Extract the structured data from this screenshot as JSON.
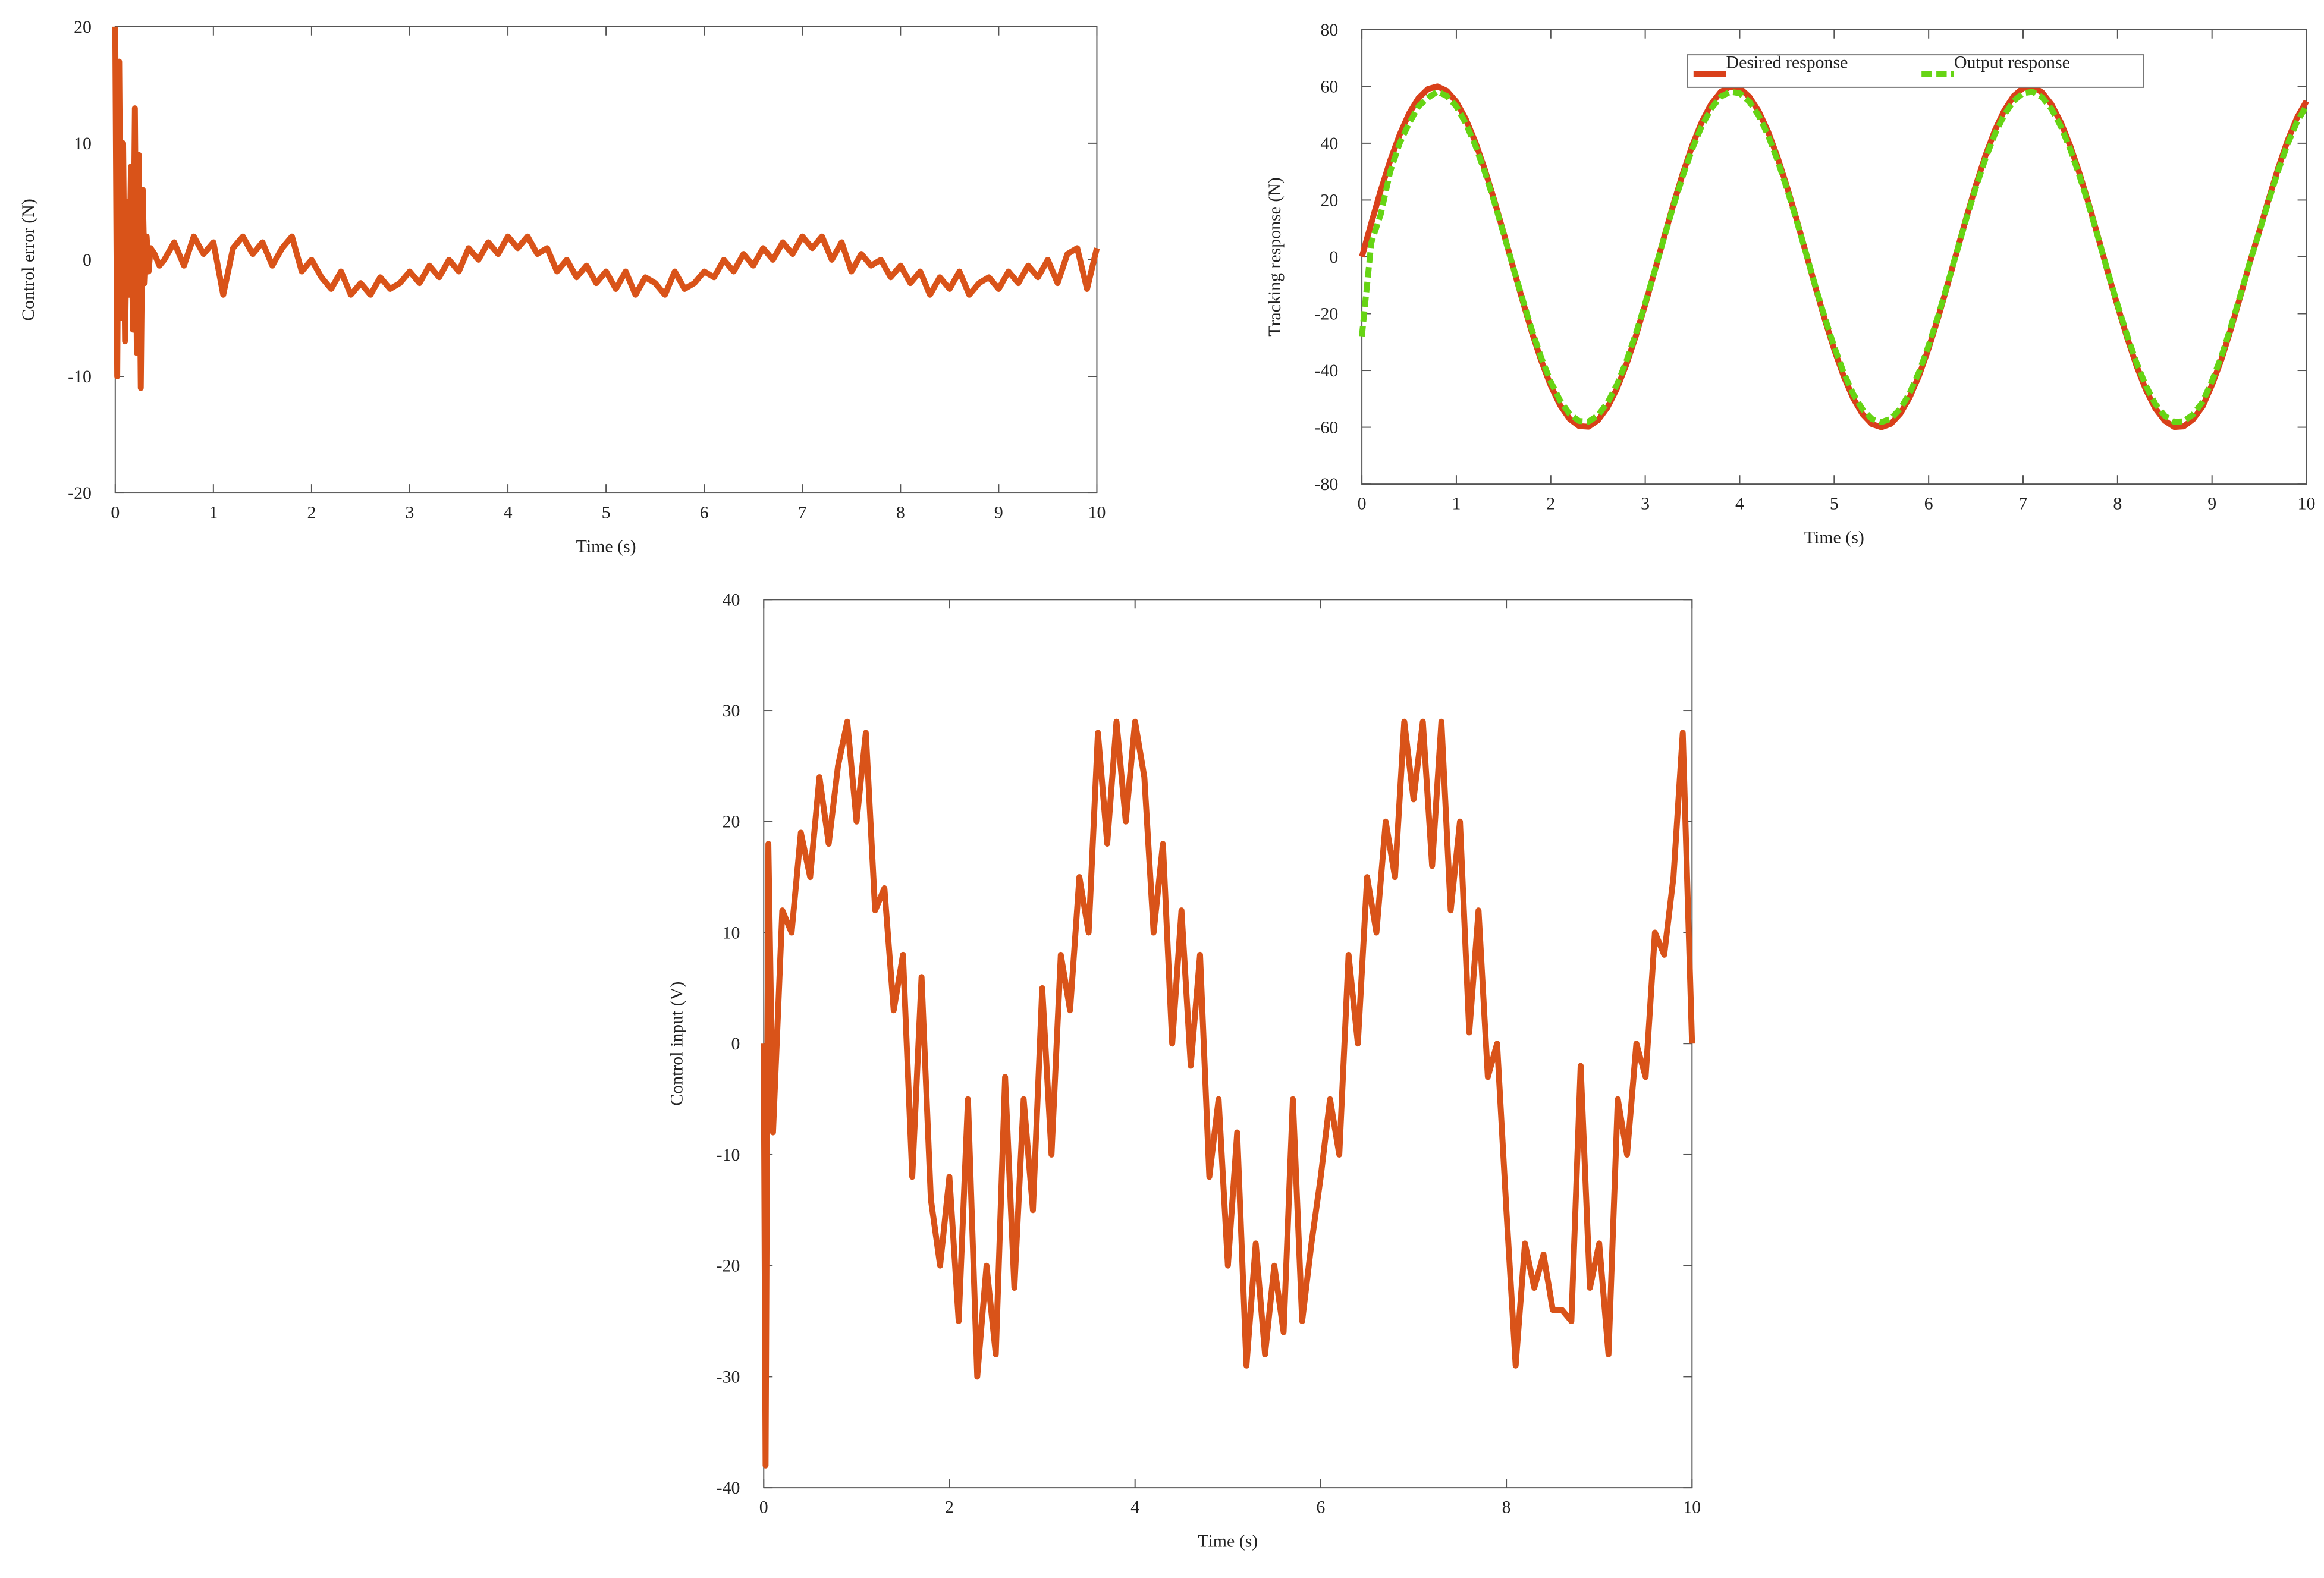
{
  "chart_data": [
    {
      "type": "line",
      "xlabel": "Time (s)",
      "ylabel": "Control error (N)",
      "xlim": [
        0,
        10
      ],
      "ylim": [
        -20,
        20
      ],
      "xticks": [
        0,
        1,
        2,
        3,
        4,
        5,
        6,
        7,
        8,
        9,
        10
      ],
      "yticks": [
        -20,
        -10,
        0,
        10,
        20
      ],
      "x": [
        0,
        0.02,
        0.04,
        0.06,
        0.08,
        0.1,
        0.12,
        0.14,
        0.16,
        0.18,
        0.2,
        0.22,
        0.24,
        0.26,
        0.28,
        0.3,
        0.32,
        0.34,
        0.36,
        0.4,
        0.45,
        0.5,
        0.6,
        0.7,
        0.8,
        0.9,
        1.0,
        1.1,
        1.2,
        1.3,
        1.4,
        1.5,
        1.6,
        1.7,
        1.8,
        1.9,
        2.0,
        2.1,
        2.2,
        2.3,
        2.4,
        2.5,
        2.6,
        2.7,
        2.8,
        2.9,
        3.0,
        3.1,
        3.2,
        3.3,
        3.4,
        3.5,
        3.6,
        3.7,
        3.8,
        3.9,
        4.0,
        4.1,
        4.2,
        4.3,
        4.4,
        4.5,
        4.6,
        4.7,
        4.8,
        4.9,
        5.0,
        5.1,
        5.2,
        5.3,
        5.4,
        5.5,
        5.6,
        5.7,
        5.8,
        5.9,
        6.0,
        6.1,
        6.2,
        6.3,
        6.4,
        6.5,
        6.6,
        6.7,
        6.8,
        6.9,
        7.0,
        7.1,
        7.2,
        7.3,
        7.4,
        7.5,
        7.6,
        7.7,
        7.8,
        7.9,
        8.0,
        8.1,
        8.2,
        8.3,
        8.4,
        8.5,
        8.6,
        8.7,
        8.8,
        8.9,
        9.0,
        9.1,
        9.2,
        9.3,
        9.4,
        9.5,
        9.6,
        9.7,
        9.8,
        9.9,
        10.0
      ],
      "series": [
        {
          "color": "#d95319",
          "values": [
            20,
            -10,
            17,
            -5,
            10,
            -7,
            5,
            -3,
            8,
            -6,
            13,
            -8,
            9,
            -11,
            6,
            -2,
            2,
            -1,
            1,
            0.5,
            -0.5,
            0,
            1.5,
            -0.5,
            2,
            0.5,
            1.5,
            -3,
            1,
            2,
            0.5,
            1.5,
            -0.5,
            1,
            2,
            -1,
            0,
            -1.5,
            -2.5,
            -1,
            -3,
            -2,
            -3,
            -1.5,
            -2.5,
            -2,
            -1,
            -2,
            -0.5,
            -1.5,
            0,
            -1,
            1,
            0,
            1.5,
            0.5,
            2,
            1,
            2,
            0.5,
            1,
            -1,
            0,
            -1.5,
            -0.5,
            -2,
            -1,
            -2.5,
            -1,
            -3,
            -1.5,
            -2,
            -3,
            -1,
            -2.5,
            -2,
            -1,
            -1.5,
            0,
            -1,
            0.5,
            -0.5,
            1,
            0,
            1.5,
            0.5,
            2,
            1,
            2,
            0,
            1.5,
            -1,
            0.5,
            -0.5,
            0,
            -1.5,
            -0.5,
            -2,
            -1,
            -3,
            -1.5,
            -2.5,
            -1,
            -3,
            -2,
            -1.5,
            -2.5,
            -1,
            -2,
            -0.5,
            -1.5,
            0,
            -2,
            0.5,
            1,
            -2.5,
            1
          ]
        }
      ]
    },
    {
      "type": "line",
      "xlabel": "Time (s)",
      "ylabel": "Tracking response (N)",
      "xlim": [
        0,
        10
      ],
      "ylim": [
        -80,
        80
      ],
      "xticks": [
        0,
        1,
        2,
        3,
        4,
        5,
        6,
        7,
        8,
        9,
        10
      ],
      "yticks": [
        -80,
        -60,
        -40,
        -20,
        0,
        20,
        40,
        60,
        80
      ],
      "legend": "upper center",
      "x": [
        0,
        0.1,
        0.2,
        0.3,
        0.4,
        0.5,
        0.6,
        0.7,
        0.8,
        0.9,
        1.0,
        1.1,
        1.2,
        1.3,
        1.4,
        1.5,
        1.6,
        1.7,
        1.8,
        1.9,
        2.0,
        2.1,
        2.2,
        2.3,
        2.4,
        2.5,
        2.6,
        2.7,
        2.8,
        2.9,
        3.0,
        3.1,
        3.2,
        3.3,
        3.4,
        3.5,
        3.6,
        3.7,
        3.8,
        3.9,
        4.0,
        4.1,
        4.2,
        4.3,
        4.4,
        4.5,
        4.6,
        4.7,
        4.8,
        4.9,
        5.0,
        5.1,
        5.2,
        5.3,
        5.4,
        5.5,
        5.6,
        5.7,
        5.8,
        5.9,
        6.0,
        6.1,
        6.2,
        6.3,
        6.4,
        6.5,
        6.6,
        6.7,
        6.8,
        6.9,
        7.0,
        7.1,
        7.2,
        7.3,
        7.4,
        7.5,
        7.6,
        7.7,
        7.8,
        7.9,
        8.0,
        8.1,
        8.2,
        8.3,
        8.4,
        8.5,
        8.6,
        8.7,
        8.8,
        8.9,
        9.0,
        9.1,
        9.2,
        9.3,
        9.4,
        9.5,
        9.6,
        9.7,
        9.8,
        9.9,
        10.0
      ],
      "series": [
        {
          "name": "Desired response",
          "color": "#d9401a",
          "style": "solid",
          "values": [
            0,
            11.9,
            23.4,
            33.9,
            43.0,
            50.5,
            55.9,
            59.1,
            60.0,
            58.4,
            54.6,
            48.5,
            40.5,
            30.9,
            20.1,
            8.5,
            -3.5,
            -15.3,
            -26.6,
            -36.7,
            -45.4,
            -52.3,
            -57.1,
            -59.6,
            -59.8,
            -57.5,
            -53.0,
            -46.4,
            -37.9,
            -27.9,
            -16.8,
            -5.0,
            7.0,
            18.7,
            29.6,
            39.4,
            47.6,
            53.9,
            58.1,
            59.9,
            59.4,
            56.4,
            51.3,
            44.1,
            35.1,
            24.7,
            13.4,
            1.5,
            -10.5,
            -22.0,
            -32.6,
            -42.0,
            -49.7,
            -55.4,
            -58.9,
            -60.0,
            -58.8,
            -55.2,
            -49.4,
            -41.7,
            -32.2,
            -21.5,
            -9.9,
            2.0,
            13.9,
            25.2,
            35.5,
            44.4,
            51.5,
            56.6,
            59.4,
            59.9,
            57.9,
            53.7,
            47.3,
            39.0,
            29.1,
            18.1,
            6.3,
            -5.8,
            -17.3,
            -28.3,
            -38.3,
            -46.8,
            -53.4,
            -57.7,
            -59.9,
            -59.7,
            -57.2,
            -52.7,
            -45.1,
            -36.1,
            -25.4,
            -13.9,
            -2.0,
            9.0,
            20.3,
            31.2,
            40.9,
            49.0,
            54.8
          ]
        },
        {
          "name": "Output response",
          "color": "#66d414",
          "style": "dashed",
          "values": [
            -28,
            5,
            15,
            30,
            40,
            47,
            53,
            56,
            58.2,
            56.6,
            53.0,
            47.0,
            39.3,
            30.0,
            19.5,
            8.2,
            -3.4,
            -14.8,
            -25.8,
            -35.6,
            -44.0,
            -50.7,
            -55.4,
            -57.8,
            -58.0,
            -55.8,
            -51.4,
            -45.0,
            -36.8,
            -27.1,
            -16.3,
            -4.9,
            6.8,
            18.1,
            28.7,
            38.2,
            46.2,
            52.3,
            56.4,
            58.1,
            57.6,
            54.7,
            49.8,
            42.8,
            34.0,
            24.0,
            13.0,
            1.5,
            -10.2,
            -21.3,
            -31.6,
            -40.7,
            -48.2,
            -53.7,
            -57.1,
            -58.2,
            -57.0,
            -53.5,
            -47.9,
            -40.4,
            -31.2,
            -20.9,
            -9.6,
            1.9,
            13.5,
            24.4,
            34.4,
            43.1,
            49.9,
            54.9,
            57.6,
            58.1,
            56.2,
            52.1,
            45.9,
            37.8,
            28.2,
            17.6,
            6.1,
            -5.6,
            -16.8,
            -27.5,
            -37.2,
            -45.4,
            -51.8,
            -56.0,
            -58.1,
            -57.9,
            -55.5,
            -51.1,
            -43.7,
            -35.0,
            -24.6,
            -13.5,
            -1.9,
            8.7,
            19.7,
            30.3,
            39.7,
            47.5,
            53.2
          ]
        }
      ]
    },
    {
      "type": "line",
      "xlabel": "Time (s)",
      "ylabel": "Control input (V)",
      "xlim": [
        0,
        10
      ],
      "ylim": [
        -40,
        40
      ],
      "xticks": [
        0,
        2,
        4,
        6,
        8,
        10
      ],
      "yticks": [
        -40,
        -30,
        -20,
        -10,
        0,
        10,
        20,
        30,
        40
      ],
      "x": [
        0,
        0.02,
        0.05,
        0.1,
        0.2,
        0.3,
        0.4,
        0.5,
        0.6,
        0.7,
        0.8,
        0.9,
        1.0,
        1.1,
        1.2,
        1.3,
        1.4,
        1.5,
        1.6,
        1.7,
        1.8,
        1.9,
        2.0,
        2.1,
        2.2,
        2.3,
        2.4,
        2.5,
        2.6,
        2.7,
        2.8,
        2.9,
        3.0,
        3.1,
        3.2,
        3.3,
        3.4,
        3.5,
        3.6,
        3.7,
        3.8,
        3.9,
        4.0,
        4.1,
        4.2,
        4.3,
        4.4,
        4.5,
        4.6,
        4.7,
        4.8,
        4.9,
        5.0,
        5.1,
        5.2,
        5.3,
        5.4,
        5.5,
        5.6,
        5.7,
        5.8,
        5.9,
        6.0,
        6.1,
        6.2,
        6.3,
        6.4,
        6.5,
        6.6,
        6.7,
        6.8,
        6.9,
        7.0,
        7.1,
        7.2,
        7.3,
        7.4,
        7.5,
        7.6,
        7.7,
        7.8,
        7.9,
        8.0,
        8.1,
        8.2,
        8.3,
        8.4,
        8.5,
        8.6,
        8.7,
        8.8,
        8.9,
        9.0,
        9.1,
        9.2,
        9.3,
        9.4,
        9.5,
        9.6,
        9.7,
        9.8,
        9.9,
        10.0
      ],
      "series": [
        {
          "color": "#d95319",
          "values": [
            0,
            -38,
            18,
            -8,
            12,
            10,
            19,
            15,
            24,
            18,
            25,
            29,
            20,
            28,
            12,
            14,
            3,
            8,
            -12,
            6,
            -14,
            -20,
            -12,
            -25,
            -5,
            -30,
            -20,
            -28,
            -3,
            -22,
            -5,
            -15,
            5,
            -10,
            8,
            3,
            15,
            10,
            28,
            18,
            29,
            20,
            29,
            24,
            10,
            18,
            0,
            12,
            -2,
            8,
            -12,
            -5,
            -20,
            -8,
            -29,
            -18,
            -28,
            -20,
            -26,
            -5,
            -25,
            -18,
            -12,
            -5,
            -10,
            8,
            0,
            15,
            10,
            20,
            15,
            29,
            22,
            29,
            16,
            29,
            12,
            20,
            1,
            12,
            -3,
            0,
            -15,
            -29,
            -18,
            -22,
            -19,
            -24,
            -24,
            -25,
            -2,
            -22,
            -18,
            -28,
            -5,
            -10,
            0,
            -3,
            10,
            8,
            15,
            28,
            0
          ]
        }
      ]
    }
  ]
}
